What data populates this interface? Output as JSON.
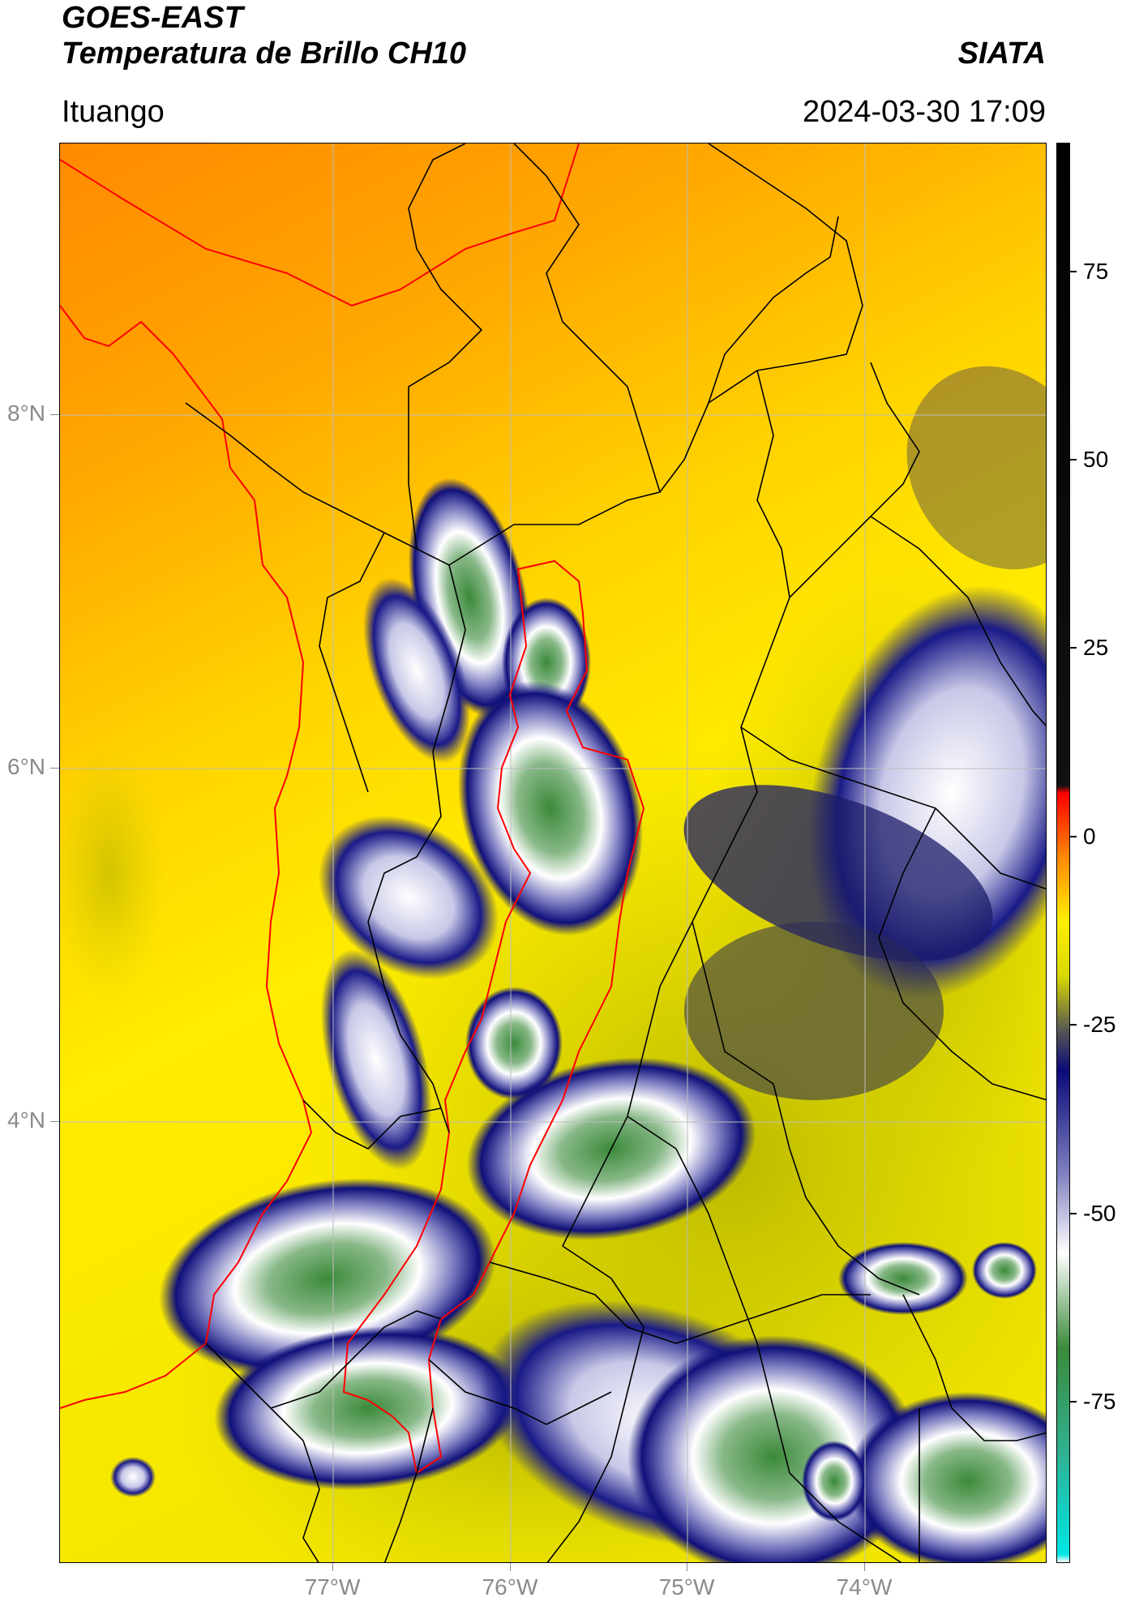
{
  "header": {
    "satellite": "GOES-EAST",
    "product": "Temperatura de Brillo CH10",
    "brand": "SIATA",
    "region": "Ituango",
    "timestamp": "2024-03-30 17:09"
  },
  "axes": {
    "lat_labels": [
      "8°N",
      "6°N",
      "4°N"
    ],
    "lon_labels": [
      "77°W",
      "76°W",
      "75°W",
      "74°W"
    ]
  },
  "colorbar": {
    "labels": [
      "75",
      "50",
      "25",
      "0",
      "-25",
      "-50",
      "-75"
    ],
    "stops": [
      {
        "value": 90,
        "color": "#000000"
      },
      {
        "value": 9,
        "color": "#111111"
      },
      {
        "value": 8,
        "color": "#ff0000"
      },
      {
        "value": 0,
        "color": "#ff8800"
      },
      {
        "value": -8,
        "color": "#ffee00"
      },
      {
        "value": -15,
        "color": "#d8d800"
      },
      {
        "value": -22,
        "color": "#555555"
      },
      {
        "value": -27,
        "color": "#0a0a7a"
      },
      {
        "value": -40,
        "color": "#8080c0"
      },
      {
        "value": -50,
        "color": "#ffffff"
      },
      {
        "value": -62,
        "color": "#3a8a3a"
      },
      {
        "value": -75,
        "color": "#30b090"
      },
      {
        "value": -88,
        "color": "#00e5e5"
      },
      {
        "value": -89,
        "color": "#ffffff"
      }
    ]
  },
  "colors": {
    "land_border": "#000000",
    "study_region_border": "#ff0000",
    "gridline": "#bdbdbd"
  }
}
